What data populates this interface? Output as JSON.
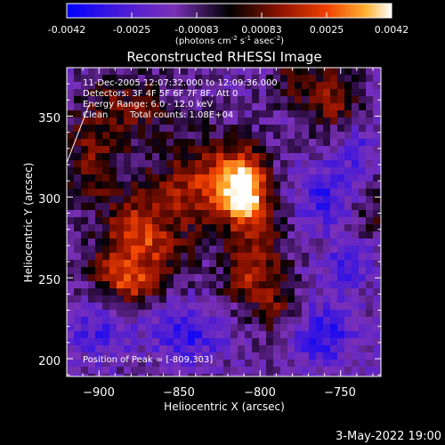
{
  "colorbar": {
    "ticks": [
      "-0.0042",
      "-0.0025",
      "-0.00083",
      "0.00083",
      "0.0025",
      "0.0042"
    ],
    "unit_label": "(photons cm",
    "unit_sup1": "-2",
    "unit_mid1": " s",
    "unit_sup2": "-1",
    "unit_mid2": " asec",
    "unit_sup3": "-2",
    "unit_end": ")",
    "colors": [
      "#0000ff",
      "#5a20c8",
      "#7a3ab0",
      "#000000",
      "#8b1800",
      "#e83800",
      "#ff9a10",
      "#ffffff"
    ]
  },
  "chart_data": {
    "type": "heatmap",
    "title": "Reconstructed RHESSI Image",
    "xlabel": "Heliocentric X (arcsec)",
    "ylabel": "Heliocentric Y (arcsec)",
    "xlim": [
      -920,
      -725
    ],
    "ylim": [
      189,
      380
    ],
    "x_ticks": [
      -900,
      -850,
      -800,
      -750
    ],
    "y_ticks": [
      200,
      250,
      300,
      350
    ],
    "x_tick_labels": [
      "−900",
      "−850",
      "−800",
      "−750"
    ],
    "y_tick_labels": [
      "200",
      "250",
      "300",
      "350"
    ],
    "value_range": [
      -0.0042,
      0.0042
    ],
    "peak": [
      -809,
      303
    ],
    "blobs": [
      {
        "x": -809,
        "y": 303,
        "sx": 9,
        "sy": 14,
        "amp": 0.0042
      },
      {
        "x": -820,
        "y": 315,
        "sx": 16,
        "sy": 16,
        "amp": 0.0022
      },
      {
        "x": -845,
        "y": 300,
        "sx": 26,
        "sy": 20,
        "amp": 0.0022
      },
      {
        "x": -880,
        "y": 280,
        "sx": 12,
        "sy": 12,
        "amp": 0.0022
      },
      {
        "x": -868,
        "y": 262,
        "sx": 14,
        "sy": 14,
        "amp": 0.0021
      },
      {
        "x": -893,
        "y": 256,
        "sx": 10,
        "sy": 10,
        "amp": 0.002
      },
      {
        "x": -880,
        "y": 245,
        "sx": 10,
        "sy": 8,
        "amp": 0.0022
      },
      {
        "x": -905,
        "y": 325,
        "sx": 12,
        "sy": 22,
        "amp": 0.0018
      },
      {
        "x": -880,
        "y": 355,
        "sx": 18,
        "sy": 14,
        "amp": 0.0018
      },
      {
        "x": -755,
        "y": 360,
        "sx": 12,
        "sy": 14,
        "amp": 0.0022
      },
      {
        "x": -778,
        "y": 372,
        "sx": 10,
        "sy": 10,
        "amp": 0.0016
      },
      {
        "x": -800,
        "y": 265,
        "sx": 12,
        "sy": 18,
        "amp": 0.002
      },
      {
        "x": -790,
        "y": 230,
        "sx": 10,
        "sy": 12,
        "amp": 0.0018
      },
      {
        "x": -812,
        "y": 248,
        "sx": 10,
        "sy": 10,
        "amp": 0.0016
      },
      {
        "x": -730,
        "y": 290,
        "sx": 10,
        "sy": 12,
        "amp": 0.0012
      },
      {
        "x": -745,
        "y": 260,
        "sx": 10,
        "sy": 10,
        "amp": -0.0018
      },
      {
        "x": -760,
        "y": 300,
        "sx": 14,
        "sy": 14,
        "amp": -0.0018
      },
      {
        "x": -845,
        "y": 215,
        "sx": 16,
        "sy": 12,
        "amp": -0.002
      },
      {
        "x": -900,
        "y": 215,
        "sx": 14,
        "sy": 12,
        "amp": -0.0016
      },
      {
        "x": -760,
        "y": 215,
        "sx": 16,
        "sy": 14,
        "amp": -0.002
      },
      {
        "x": -740,
        "y": 330,
        "sx": 10,
        "sy": 10,
        "amp": -0.0014
      }
    ],
    "annotations": {
      "time": "11-Dec-2005 12:07:32.000 to 12:09:36.000",
      "detectors": "Detectors: 3F 4F 5F 6F 7F 8F, Att 0",
      "energy": "Energy Range: 6.0 - 12.0 keV",
      "clean_word": "Clean",
      "counts": "Total counts: 1.08E+04",
      "peak_text": "Position of Peak = [-809,303]"
    }
  },
  "footer_date": "3-May-2022 19:00"
}
